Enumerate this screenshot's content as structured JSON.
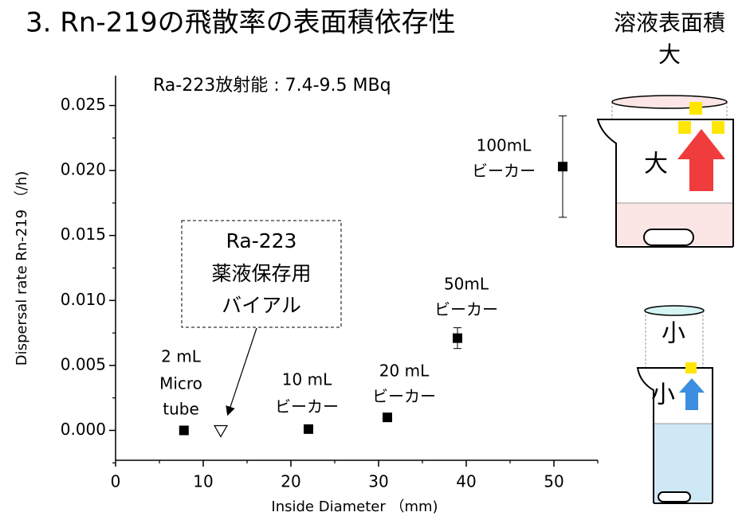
{
  "chart_data": {
    "type": "scatter",
    "title": "3. Rn-219の飛散率の表面積依存性",
    "annotation": "Ra-223放射能 : 7.4-9.5 MBq",
    "callout": [
      "Ra-223",
      "薬液保存用",
      "バイアル"
    ],
    "xlabel": "Inside Diameter （mm)",
    "ylabel": "Dispersal rate Rn-219 （/h)",
    "xlim": [
      0,
      55
    ],
    "ylim": [
      -0.0023,
      0.0273
    ],
    "xticks": [
      0,
      10,
      20,
      30,
      40,
      50
    ],
    "xminorticks": [
      5,
      15,
      25,
      35,
      45,
      55
    ],
    "yticks": [
      {
        "value": 0,
        "label": "0.000"
      },
      {
        "value": 0.005,
        "label": "0.005"
      },
      {
        "value": 0.01,
        "label": "0.010"
      },
      {
        "value": 0.015,
        "label": "0.015"
      },
      {
        "value": 0.02,
        "label": "0.020"
      },
      {
        "value": 0.025,
        "label": "0.025"
      }
    ],
    "yminorticks": [
      -0.0025,
      0.0025,
      0.0075,
      0.0125,
      0.0175,
      0.0225
    ],
    "series": [
      {
        "marker": "square",
        "color": "#000000",
        "x": [
          7.8,
          22,
          31,
          39,
          51
        ],
        "values": [
          0,
          0.0001,
          0.001,
          0.0071,
          0.0203
        ],
        "errors": [
          null,
          null,
          null,
          0.0008,
          0.0039
        ],
        "point_labels": [
          [
            "2 mL",
            "Micro",
            "tube"
          ],
          [
            "10 mL",
            "ビーカー"
          ],
          [
            "20 mL",
            "ビーカー"
          ],
          [
            "50mL",
            "ビーカー"
          ],
          [
            "100mL",
            "ビーカー"
          ]
        ]
      },
      {
        "marker": "triangle",
        "color": "#000000",
        "x": [
          12
        ],
        "values": [
          0
        ]
      }
    ]
  },
  "illustration": {
    "heading": "溶液表面積",
    "heading_sub": "大",
    "large_label": "大",
    "small_top_label": "小",
    "small_label": "小"
  }
}
